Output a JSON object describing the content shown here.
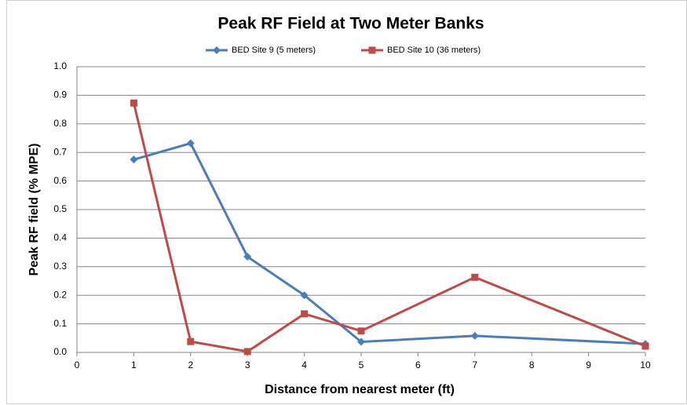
{
  "chart_data": {
    "type": "line",
    "title": "Peak RF Field at Two Meter Banks",
    "x_label": "Distance from nearest meter (ft)",
    "y_label": "Peak RF field (% MPE)",
    "series": [
      {
        "name": "BED Site 9 (5 meters)",
        "color": "#4a7ebb",
        "marker": "diamond",
        "x": [
          1,
          2,
          3,
          4,
          5,
          7,
          10
        ],
        "values": [
          0.675,
          0.732,
          0.335,
          0.2,
          0.037,
          0.058,
          0.03
        ]
      },
      {
        "name": "BED Site 10 (36 meters)",
        "color": "#be4b48",
        "marker": "square",
        "x": [
          1,
          2,
          3,
          4,
          5,
          7,
          10
        ],
        "values": [
          0.873,
          0.038,
          0.003,
          0.135,
          0.075,
          0.263,
          0.022
        ]
      }
    ],
    "xlim": [
      0,
      10
    ],
    "xticks": [
      0,
      1,
      2,
      3,
      4,
      5,
      6,
      7,
      8,
      9,
      10
    ],
    "ylim": [
      0,
      1
    ],
    "yticks": [
      {
        "value": 0,
        "label": "0.0"
      },
      0.1,
      0.2,
      0.3,
      0.4,
      0.5,
      0.6,
      0.7,
      0.8,
      0.9,
      {
        "value": 1,
        "label": "1.0"
      }
    ],
    "grid": true,
    "legend": "top"
  }
}
